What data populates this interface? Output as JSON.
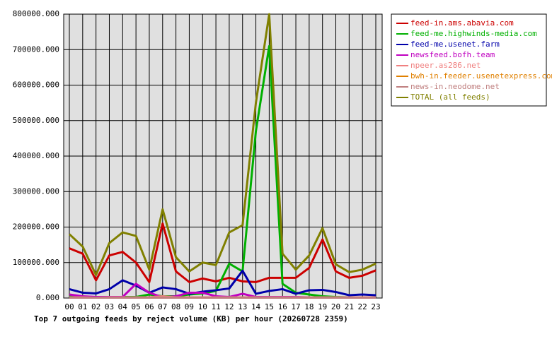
{
  "chart_data": {
    "type": "line",
    "title": "Top 7 outgoing feeds by reject volume (KB) per hour (20260728 2359)",
    "categories": [
      "00",
      "01",
      "02",
      "03",
      "04",
      "05",
      "06",
      "07",
      "08",
      "09",
      "10",
      "11",
      "12",
      "13",
      "14",
      "15",
      "16",
      "17",
      "18",
      "19",
      "20",
      "21",
      "22",
      "23"
    ],
    "ylim": [
      0,
      800000
    ],
    "yticks": [
      {
        "value": 0,
        "label": "0.000"
      },
      {
        "value": 100000,
        "label": "100000.000"
      },
      {
        "value": 200000,
        "label": "200000.000"
      },
      {
        "value": 300000,
        "label": "300000.000"
      },
      {
        "value": 400000,
        "label": "400000.000"
      },
      {
        "value": 500000,
        "label": "500000.000"
      },
      {
        "value": 600000,
        "label": "600000.000"
      },
      {
        "value": 700000,
        "label": "700000.000"
      },
      {
        "value": 800000,
        "label": "800000.000"
      }
    ],
    "grid": true,
    "legend": "right",
    "series": [
      {
        "name": "feed-in.ams.abavia.com",
        "color": "#cc0000",
        "values": [
          140000,
          125000,
          50000,
          120000,
          130000,
          100000,
          45000,
          210000,
          75000,
          45000,
          55000,
          47000,
          57000,
          47000,
          45000,
          57000,
          57000,
          57000,
          85000,
          165000,
          75000,
          57000,
          63000,
          78000
        ]
      },
      {
        "name": "feed-me.highwinds-media.com",
        "color": "#00b000",
        "values": [
          5000,
          3000,
          2000,
          3000,
          3000,
          3000,
          10000,
          5000,
          5000,
          10000,
          13000,
          20000,
          97000,
          75000,
          470000,
          710000,
          40000,
          15000,
          10000,
          5000,
          3000,
          2000,
          2000,
          2000
        ]
      },
      {
        "name": "feed-me.usenet.farm",
        "color": "#0000aa",
        "values": [
          25000,
          15000,
          13000,
          25000,
          50000,
          35000,
          15000,
          30000,
          25000,
          12000,
          18000,
          22000,
          27000,
          77000,
          12000,
          20000,
          25000,
          12000,
          22000,
          23000,
          17000,
          8000,
          10000,
          8000
        ]
      },
      {
        "name": "newsfeed.bofh.team",
        "color": "#c000c0",
        "values": [
          10000,
          5000,
          3000,
          3000,
          3000,
          40000,
          15000,
          2000,
          5000,
          15000,
          15000,
          5000,
          3000,
          12000,
          3000,
          3000,
          3000,
          3000,
          2000,
          2000,
          2000,
          2000,
          2000,
          2000
        ]
      },
      {
        "name": "npeer.as286.net",
        "color": "#f08080",
        "values": [
          2000,
          2000,
          1000,
          2000,
          2000,
          2000,
          2000,
          5000,
          2000,
          2000,
          2000,
          2000,
          2000,
          2000,
          2000,
          2000,
          2000,
          2000,
          2000,
          2000,
          2000,
          2000,
          2000,
          2000
        ]
      },
      {
        "name": "bwh-in.feeder.usenetexpress.com",
        "color": "#e08000",
        "values": [
          1000,
          1000,
          1000,
          1000,
          1000,
          1000,
          1000,
          1000,
          1000,
          1000,
          1000,
          1000,
          1000,
          1000,
          1000,
          1000,
          1000,
          1000,
          1000,
          1000,
          1000,
          1000,
          1000,
          1000
        ]
      },
      {
        "name": "news-in.neodome.net",
        "color": "#c08080",
        "values": [
          1000,
          1000,
          1000,
          1000,
          1000,
          1000,
          1000,
          1000,
          1000,
          1000,
          1000,
          1000,
          1000,
          1000,
          1000,
          1000,
          1000,
          1000,
          1000,
          1000,
          1000,
          1000,
          1000,
          1000
        ]
      },
      {
        "name": "TOTAL (all feeds)",
        "color": "#808000",
        "values": [
          180000,
          145000,
          65000,
          155000,
          185000,
          175000,
          80000,
          250000,
          115000,
          75000,
          100000,
          93000,
          185000,
          205000,
          550000,
          800000,
          125000,
          80000,
          120000,
          197000,
          95000,
          73000,
          80000,
          97000
        ]
      }
    ]
  }
}
